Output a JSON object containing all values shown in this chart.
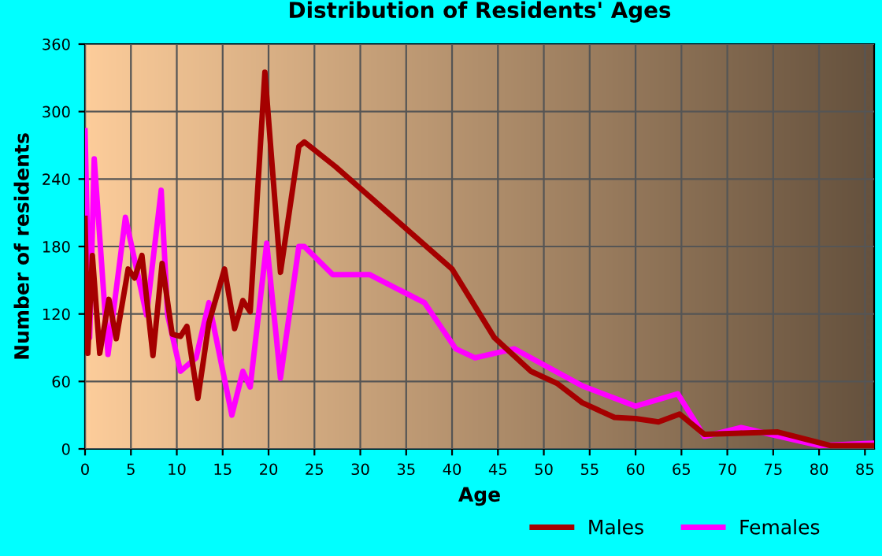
{
  "chart_data": {
    "type": "line",
    "title": "Distribution of Residents' Ages",
    "xlabel": "Age",
    "ylabel": "Number of residents",
    "xlim": [
      0,
      86
    ],
    "xticks": [
      0,
      5,
      10,
      15,
      20,
      25,
      30,
      35,
      40,
      45,
      50,
      55,
      60,
      65,
      70,
      75,
      80,
      85
    ],
    "ylim": [
      0,
      360
    ],
    "yticks": [
      0,
      60,
      120,
      180,
      240,
      300,
      360
    ],
    "grid": true,
    "legend": "bottom",
    "series": [
      {
        "name": "Males",
        "color": "#a50000",
        "x": [
          0,
          0.3,
          0.8,
          1.6,
          2.6,
          3.4,
          4.7,
          5.4,
          6.2,
          7.4,
          8.4,
          9.5,
          10.4,
          11.1,
          12.3,
          13.5,
          15.2,
          16.3,
          17.2,
          18,
          19.6,
          21.3,
          23.3,
          23.9,
          27.3,
          34.7,
          40,
          44.6,
          48.6,
          51.5,
          54.2,
          57.7,
          60,
          62.5,
          64.8,
          67.5,
          75.5,
          81.2,
          85.8
        ],
        "values": [
          205,
          85,
          172,
          85,
          133,
          98,
          160,
          152,
          172,
          83,
          165,
          102,
          100,
          109,
          45,
          112,
          160,
          107,
          132,
          122,
          335,
          157,
          269,
          273,
          251,
          198,
          160,
          99,
          69,
          58,
          41,
          28,
          27,
          24,
          31,
          13,
          15,
          3,
          3
        ]
      },
      {
        "name": "Females",
        "color": "#ff00ff",
        "x": [
          0,
          0.5,
          1,
          2.5,
          4.4,
          6.7,
          8.3,
          9,
          10.4,
          12.1,
          13.5,
          16,
          17.2,
          18,
          19.8,
          21.3,
          23.3,
          23.9,
          27,
          31,
          37,
          40.4,
          42.5,
          46.8,
          54.2,
          60,
          64.6,
          67.5,
          71.5,
          80,
          85.8
        ],
        "values": [
          283,
          99,
          258,
          84,
          206,
          119,
          230,
          119,
          69,
          81,
          130,
          30,
          69,
          55,
          183,
          63,
          180,
          180,
          155,
          155,
          130,
          89,
          81,
          89,
          56,
          38,
          49,
          11,
          19,
          3,
          5
        ]
      }
    ]
  }
}
